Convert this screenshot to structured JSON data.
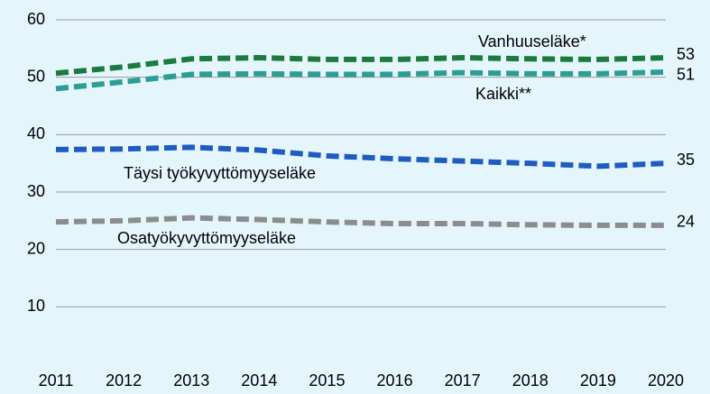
{
  "chart_data": {
    "type": "line",
    "x": [
      2011,
      2012,
      2013,
      2014,
      2015,
      2016,
      2017,
      2018,
      2019,
      2020
    ],
    "xlim": [
      2011,
      2020
    ],
    "xticks": [
      2011,
      2012,
      2013,
      2014,
      2015,
      2016,
      2017,
      2018,
      2019,
      2020
    ],
    "ylim": [
      0,
      60
    ],
    "yticks": [
      10,
      20,
      30,
      40,
      50,
      60
    ],
    "grid": true,
    "series": [
      {
        "name": "Vanhuuseläke*",
        "color": "#1b7a3e",
        "values": [
          50.7,
          51.8,
          53.2,
          53.4,
          53.1,
          53.1,
          53.4,
          53.2,
          53.1,
          53.4
        ],
        "value_labels": [
          null,
          null,
          null,
          null,
          null,
          null,
          null,
          null,
          null,
          "53"
        ]
      },
      {
        "name": "Kaikki**",
        "color": "#2a9e96",
        "values": [
          48.0,
          49.2,
          50.5,
          50.6,
          50.5,
          50.5,
          50.8,
          50.6,
          50.6,
          50.9
        ],
        "value_labels": [
          null,
          null,
          null,
          null,
          null,
          null,
          null,
          null,
          null,
          "51"
        ]
      },
      {
        "name": "Täysi työkyvyttömyyseläke",
        "color": "#1f5cbf",
        "values": [
          37.4,
          37.5,
          37.8,
          37.3,
          36.3,
          35.8,
          35.4,
          35.0,
          34.5,
          35.0
        ],
        "value_labels": [
          null,
          null,
          null,
          null,
          null,
          null,
          null,
          null,
          null,
          "35"
        ]
      },
      {
        "name": "Osatyökyvyttömyyseläke",
        "color": "#8c8c8c",
        "values": [
          24.8,
          25.0,
          25.5,
          25.2,
          24.8,
          24.5,
          24.5,
          24.3,
          24.2,
          24.2
        ],
        "value_labels": [
          null,
          null,
          null,
          null,
          null,
          null,
          null,
          null,
          null,
          "24"
        ]
      }
    ]
  }
}
